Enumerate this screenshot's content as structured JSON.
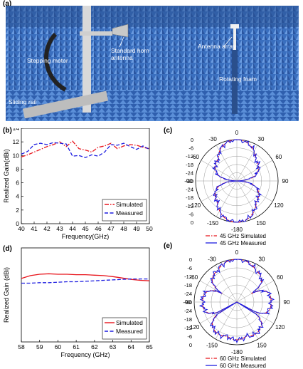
{
  "figure": {
    "panel_labels": [
      "(a)",
      "(b)",
      "(c)",
      "(d)",
      "(e)"
    ],
    "photo_annotations": [
      "Stepping motor",
      "Standard horn antenna",
      "Antenna array",
      "Sliding rail",
      "Rotating foam"
    ]
  },
  "chart_data": [
    {
      "id": "b",
      "type": "line",
      "xlabel": "Frequency(GHz)",
      "ylabel": "Realized Gain(dBi)",
      "xlim": [
        40,
        50
      ],
      "ylim": [
        0,
        14
      ],
      "xticks": [
        40,
        41,
        42,
        43,
        44,
        45,
        46,
        47,
        48,
        49,
        50
      ],
      "yticks": [
        0,
        2,
        4,
        6,
        8,
        10,
        12,
        14
      ],
      "legend_position": "bottom-right",
      "series": [
        {
          "name": "Simulated",
          "color": "#e8141b",
          "style": "dash-dot",
          "x": [
            40,
            40.5,
            41,
            41.5,
            42,
            42.5,
            43,
            43.5,
            44,
            44.5,
            45,
            45.5,
            46,
            46.5,
            47,
            47.5,
            48,
            48.5,
            49,
            49.5,
            50
          ],
          "y": [
            9.8,
            10.1,
            10.5,
            10.9,
            11.3,
            11.6,
            12.0,
            11.3,
            12.1,
            11.0,
            10.8,
            10.5,
            11.2,
            11.4,
            11.8,
            11.0,
            11.4,
            11.6,
            11.5,
            11.2,
            11.0
          ]
        },
        {
          "name": "Measured",
          "color": "#1c1ce0",
          "style": "dashed",
          "x": [
            40,
            40.5,
            41,
            41.5,
            42,
            42.5,
            43,
            43.5,
            44,
            44.5,
            45,
            45.5,
            46,
            46.5,
            47,
            47.5,
            48,
            48.5,
            49,
            49.5,
            50
          ],
          "y": [
            10.2,
            10.6,
            11.6,
            11.8,
            11.6,
            11.9,
            11.8,
            11.7,
            9.9,
            10.0,
            9.7,
            10.1,
            9.9,
            10.5,
            11.6,
            11.5,
            11.8,
            11.3,
            10.9,
            11.4,
            10.9
          ]
        }
      ]
    },
    {
      "id": "c",
      "type": "polar",
      "angle_ticks": [
        0,
        30,
        60,
        90,
        120,
        150,
        -180,
        -150,
        -120,
        -90,
        -60,
        -30
      ],
      "radial_ticks": [
        0,
        -6,
        -12,
        -18,
        -24,
        -30,
        -24,
        -18,
        -12,
        -6,
        0
      ],
      "legend_position": "bottom",
      "series": [
        {
          "name": "45 GHz Simulated",
          "color": "#e8141b",
          "style": "dash-dot"
        },
        {
          "name": "45 GHz Measured",
          "color": "#1c1ce0",
          "style": "solid"
        }
      ]
    },
    {
      "id": "d",
      "type": "line",
      "xlabel": "Frequency (GHz)",
      "ylabel": "Realized Gain (dBi)",
      "xlim": [
        58,
        65
      ],
      "ylim": [
        0,
        20
      ],
      "xticks": [
        58,
        59,
        60,
        61,
        62,
        63,
        64,
        65
      ],
      "legend_position": "bottom-right",
      "series": [
        {
          "name": "Simulated",
          "color": "#e8141b",
          "style": "solid",
          "x": [
            58,
            58.5,
            59,
            59.5,
            60,
            60.5,
            61,
            61.5,
            62,
            62.5,
            63,
            63.5,
            64,
            64.5,
            65
          ],
          "y": [
            13.5,
            14.1,
            14.4,
            14.5,
            14.4,
            14.4,
            14.3,
            14.3,
            14.2,
            14.1,
            13.9,
            13.6,
            13.3,
            13.1,
            13.0
          ]
        },
        {
          "name": "Measured",
          "color": "#1c1ce0",
          "style": "dashed",
          "x": [
            58,
            58.5,
            59,
            59.5,
            60,
            60.5,
            61,
            61.5,
            62,
            62.5,
            63,
            63.5,
            64,
            64.5,
            65
          ],
          "y": [
            12.5,
            12.5,
            12.6,
            12.6,
            12.7,
            12.8,
            12.8,
            12.9,
            13.0,
            13.1,
            13.2,
            13.3,
            13.4,
            13.4,
            13.4
          ]
        }
      ]
    },
    {
      "id": "e",
      "type": "polar",
      "angle_ticks": [
        0,
        30,
        60,
        90,
        120,
        150,
        -180,
        -150,
        -120,
        -90,
        -60,
        -30
      ],
      "radial_ticks": [
        0,
        -6,
        -12,
        -18,
        -24,
        -30,
        -24,
        -18,
        -12,
        -6,
        0
      ],
      "legend_position": "bottom",
      "series": [
        {
          "name": "60 GHz Simulated",
          "color": "#e8141b",
          "style": "dash-dot"
        },
        {
          "name": "60 GHz Measured",
          "color": "#1c1ce0",
          "style": "solid"
        }
      ]
    }
  ]
}
